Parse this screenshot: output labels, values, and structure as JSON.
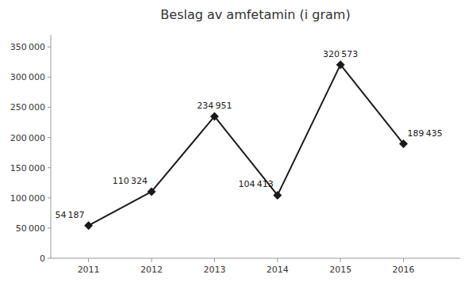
{
  "chart_data": {
    "type": "line",
    "title": "Beslag av amfetamin (i gram)",
    "x": [
      2011,
      2012,
      2013,
      2014,
      2015,
      2016
    ],
    "values": [
      54187,
      110324,
      234951,
      104413,
      320573,
      189435
    ],
    "value_labels": [
      "54 187",
      "110 324",
      "234 951",
      "104 413",
      "320 573",
      "189 435"
    ],
    "data_labels": true,
    "color": "#1a1a1a",
    "marker": "diamond",
    "grid": false,
    "xlim": [
      2010.4,
      2016.9
    ],
    "xticks": [
      2011,
      2012,
      2013,
      2014,
      2015,
      2016
    ],
    "ylim": [
      0,
      370000
    ],
    "yticks": [
      0,
      {
        "value": 50000,
        "label": "50 000"
      },
      {
        "value": 100000,
        "label": "100 000"
      },
      {
        "value": 150000,
        "label": "150 000"
      },
      {
        "value": 200000,
        "label": "200 000"
      },
      {
        "value": 250000,
        "label": "250 000"
      },
      {
        "value": 300000,
        "label": "300 000"
      },
      {
        "value": 350000,
        "label": "350 000"
      }
    ]
  }
}
